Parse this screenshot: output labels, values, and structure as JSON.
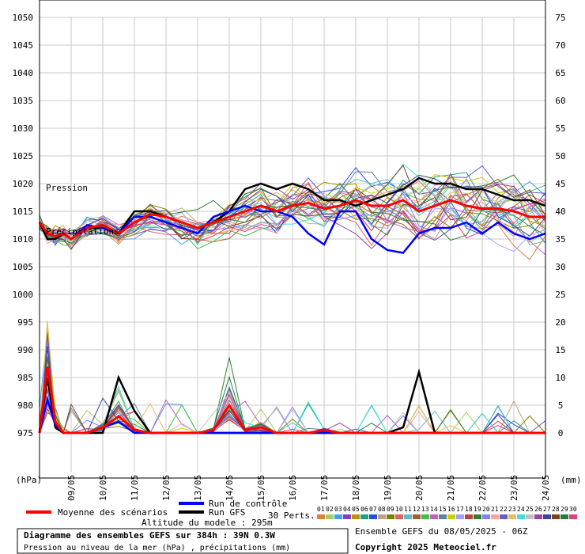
{
  "chart_data": {
    "type": "line",
    "title": "Diagramme des ensembles GEFS sur 384h : 39N 0.3W",
    "subtitle": "Pression au niveau de la mer (hPa) , précipitations (mm)",
    "ensemble_label": "Ensemble GEFS du 08/05/2025 - 06Z",
    "copyright": "Copyright 2025 Meteociel.fr",
    "altitude_label": "Altitude du modele : 295m",
    "left_axis_unit": "(hPa)",
    "right_axis_unit": "(mm)",
    "y_left": {
      "ylim": [
        975,
        1050
      ],
      "ticks": [
        975,
        980,
        985,
        990,
        995,
        1000,
        1005,
        1010,
        1015,
        1020,
        1025,
        1030,
        1035,
        1040,
        1045,
        1050
      ]
    },
    "y_right": {
      "ylim": [
        0,
        75
      ],
      "ticks": [
        0,
        5,
        10,
        15,
        20,
        25,
        30,
        35,
        40,
        45,
        50,
        55,
        60,
        65,
        70,
        75
      ]
    },
    "x_ticks": [
      "09/05",
      "10/05",
      "11/05",
      "12/05",
      "13/05",
      "14/05",
      "15/05",
      "16/05",
      "17/05",
      "18/05",
      "19/05",
      "20/05",
      "21/05",
      "22/05",
      "23/05",
      "24/05"
    ],
    "x_range_days": [
      0,
      16
    ],
    "grid": true,
    "inline_labels": {
      "pressure": "Pression",
      "precip": "Précipitations"
    },
    "legend": {
      "mean": "Moyenne des scénarios",
      "control": "Run de contrôle",
      "gfs": "Run GFS",
      "perts_label": "30 Perts.",
      "perts": [
        "01",
        "02",
        "03",
        "04",
        "05",
        "06",
        "07",
        "08",
        "09",
        "10",
        "11",
        "12",
        "13",
        "14",
        "15",
        "16",
        "17",
        "18",
        "19",
        "20",
        "21",
        "22",
        "23",
        "24",
        "25",
        "26",
        "27",
        "28",
        "29",
        "30"
      ],
      "pert_colors": [
        "#e08030",
        "#a0d060",
        "#40a0ff",
        "#8040c0",
        "#c09000",
        "#20a080",
        "#2050e0",
        "#c0a080",
        "#808000",
        "#e06060",
        "#60c0c0",
        "#a06030",
        "#40c040",
        "#c060c0",
        "#6080a0",
        "#d0d000",
        "#a0a0ff",
        "#c04040",
        "#308030",
        "#8080ff",
        "#ffa0a0",
        "#6060c0",
        "#e0c060",
        "#40e0e0",
        "#c0c0c0",
        "#a040a0",
        "#4040a0",
        "#804020",
        "#208040",
        "#e04080"
      ]
    },
    "colors": {
      "mean": "#ff0000",
      "control": "#0000ff",
      "gfs": "#000000"
    },
    "series": [
      {
        "name": "Moyenne des scénarios",
        "x": [
          0,
          0.25,
          0.5,
          0.75,
          1,
          1.5,
          2,
          2.5,
          3,
          3.5,
          4,
          4.5,
          5,
          5.5,
          6,
          6.5,
          7,
          7.5,
          8,
          8.5,
          9,
          9.5,
          10,
          10.5,
          11,
          11.5,
          12,
          12.5,
          13,
          13.5,
          14,
          14.5,
          15,
          15.5,
          16
        ],
        "pressure": [
          1013,
          1011,
          1010.5,
          1011,
          1010,
          1012,
          1012.5,
          1011,
          1013,
          1014.5,
          1014,
          1013,
          1012,
          1013,
          1014,
          1015,
          1016,
          1015,
          1016,
          1016.5,
          1015.5,
          1016,
          1017,
          1016,
          1016,
          1017,
          1015,
          1016,
          1017,
          1016,
          1015.5,
          1015.5,
          1015,
          1014,
          1014
        ],
        "precip": [
          0,
          12,
          2,
          0,
          0,
          0,
          1,
          3,
          0.5,
          0,
          0,
          0,
          0,
          0.5,
          5,
          0.5,
          1,
          0,
          0,
          0,
          0.5,
          0,
          0,
          0,
          0,
          0,
          0,
          0,
          0,
          0,
          0,
          0,
          0,
          0,
          0
        ]
      },
      {
        "name": "Run de contrôle",
        "x": [
          0,
          0.25,
          0.5,
          0.75,
          1,
          1.5,
          2,
          2.5,
          3,
          3.5,
          4,
          4.5,
          5,
          5.5,
          6,
          6.5,
          7,
          7.5,
          8,
          8.5,
          9,
          9.5,
          10,
          10.5,
          11,
          11.5,
          12,
          12.5,
          13,
          13.5,
          14,
          14.5,
          15,
          15.5,
          16
        ],
        "pressure": [
          1013,
          1011,
          1010.5,
          1011,
          1010,
          1012.5,
          1012,
          1011,
          1014,
          1014,
          1013,
          1012,
          1011,
          1014,
          1015,
          1016,
          1015,
          1015,
          1014,
          1011,
          1009,
          1015,
          1015,
          1010,
          1008,
          1007.5,
          1011,
          1012,
          1012,
          1013,
          1011,
          1013,
          1011,
          1010,
          1011
        ],
        "precip": [
          0,
          6,
          1.5,
          0,
          0,
          0,
          1,
          2,
          0,
          0,
          0,
          0,
          0,
          0,
          0,
          0,
          0,
          0,
          0,
          0,
          0,
          0,
          0,
          0,
          0,
          0,
          0,
          0,
          0,
          0,
          0,
          0,
          0,
          0,
          0
        ]
      },
      {
        "name": "Run GFS",
        "x": [
          0,
          0.25,
          0.5,
          0.75,
          1,
          1.5,
          2,
          2.5,
          3,
          3.5,
          4,
          4.5,
          5,
          5.5,
          6,
          6.5,
          7,
          7.5,
          8,
          8.5,
          9,
          9.5,
          10,
          10.5,
          11,
          11.5,
          12,
          12.5,
          13,
          13.5,
          14,
          14.5,
          15,
          15.5,
          16
        ],
        "pressure": [
          1013,
          1010,
          1010,
          1011,
          1010,
          1012,
          1012,
          1011,
          1015,
          1015,
          1014,
          1013,
          1012,
          1013,
          1015,
          1019,
          1020,
          1019,
          1020,
          1019,
          1017,
          1017,
          1016,
          1017,
          1018,
          1019,
          1021,
          1020,
          1020,
          1019,
          1019,
          1018,
          1017,
          1017,
          1016
        ],
        "precip": [
          0,
          10,
          1,
          0,
          0,
          0,
          0,
          10,
          4,
          0,
          0,
          0,
          0,
          0,
          0,
          0,
          0,
          0,
          0,
          0,
          0,
          0,
          0,
          0,
          0,
          1,
          11,
          0,
          0,
          0,
          0,
          0,
          0,
          0,
          0
        ]
      }
    ]
  }
}
